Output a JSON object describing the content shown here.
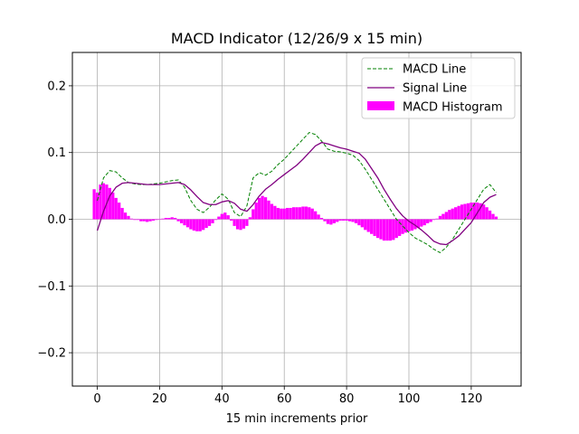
{
  "chart_data": {
    "type": "line",
    "title": "MACD Indicator (12/26/9 x 15 min)",
    "xlabel": "15 min increments prior",
    "ylabel": "",
    "xlim": [
      -8,
      136
    ],
    "ylim": [
      -0.25,
      0.25
    ],
    "xticks": [
      0,
      20,
      40,
      60,
      80,
      100,
      120
    ],
    "xtick_labels": [
      "0",
      "20",
      "40",
      "60",
      "80",
      "100",
      "120"
    ],
    "yticks": [
      -0.2,
      -0.1,
      0.0,
      0.1,
      0.2
    ],
    "ytick_labels": [
      "−0.2",
      "−0.1",
      "0.0",
      "0.1",
      "0.2"
    ],
    "grid": true,
    "legend_position": "top-right",
    "colors": {
      "macd": "#008000",
      "signal": "#800080",
      "histogram": "#ff00ff"
    },
    "series": [
      {
        "name": "MACD Line",
        "style": "dashed",
        "x": [
          0,
          2,
          4,
          6,
          8,
          10,
          12,
          14,
          16,
          18,
          20,
          22,
          24,
          26,
          28,
          30,
          32,
          34,
          36,
          38,
          40,
          42,
          44,
          46,
          48,
          50,
          52,
          54,
          56,
          58,
          60,
          62,
          64,
          66,
          68,
          70,
          72,
          74,
          76,
          78,
          80,
          82,
          84,
          86,
          88,
          90,
          92,
          94,
          96,
          98,
          100,
          102,
          104,
          106,
          108,
          110,
          112,
          114,
          116,
          118,
          120,
          122,
          124,
          126,
          128
        ],
        "values": [
          0.028,
          0.062,
          0.073,
          0.071,
          0.062,
          0.055,
          0.053,
          0.052,
          0.052,
          0.053,
          0.054,
          0.056,
          0.058,
          0.059,
          0.048,
          0.028,
          0.015,
          0.01,
          0.018,
          0.029,
          0.038,
          0.03,
          0.01,
          0.004,
          0.02,
          0.062,
          0.07,
          0.066,
          0.072,
          0.082,
          0.09,
          0.1,
          0.11,
          0.12,
          0.13,
          0.127,
          0.117,
          0.105,
          0.102,
          0.101,
          0.099,
          0.096,
          0.088,
          0.075,
          0.06,
          0.045,
          0.03,
          0.015,
          0.0,
          -0.01,
          -0.02,
          -0.028,
          -0.033,
          -0.038,
          -0.045,
          -0.05,
          -0.042,
          -0.03,
          -0.015,
          0.0,
          0.015,
          0.03,
          0.045,
          0.052,
          0.04
        ]
      },
      {
        "name": "Signal Line",
        "style": "solid",
        "x": [
          0,
          2,
          4,
          6,
          8,
          10,
          12,
          14,
          16,
          18,
          20,
          22,
          24,
          26,
          28,
          30,
          32,
          34,
          36,
          38,
          40,
          42,
          44,
          46,
          48,
          50,
          52,
          54,
          56,
          58,
          60,
          62,
          64,
          66,
          68,
          70,
          72,
          74,
          76,
          78,
          80,
          82,
          84,
          86,
          88,
          90,
          92,
          94,
          96,
          98,
          100,
          102,
          104,
          106,
          108,
          110,
          112,
          114,
          116,
          118,
          120,
          122,
          124,
          126,
          128
        ],
        "values": [
          -0.017,
          0.012,
          0.035,
          0.048,
          0.054,
          0.055,
          0.054,
          0.053,
          0.052,
          0.052,
          0.052,
          0.053,
          0.054,
          0.055,
          0.052,
          0.044,
          0.034,
          0.025,
          0.022,
          0.022,
          0.026,
          0.028,
          0.024,
          0.015,
          0.012,
          0.022,
          0.035,
          0.045,
          0.052,
          0.06,
          0.067,
          0.074,
          0.081,
          0.09,
          0.1,
          0.11,
          0.115,
          0.113,
          0.11,
          0.107,
          0.105,
          0.102,
          0.099,
          0.09,
          0.076,
          0.062,
          0.045,
          0.03,
          0.016,
          0.005,
          -0.003,
          -0.009,
          -0.016,
          -0.024,
          -0.033,
          -0.037,
          -0.038,
          -0.032,
          -0.025,
          -0.015,
          -0.005,
          0.01,
          0.025,
          0.033,
          0.037
        ]
      },
      {
        "name": "MACD Histogram",
        "style": "bars",
        "x": [
          -1,
          0,
          1,
          2,
          3,
          4,
          5,
          6,
          7,
          8,
          9,
          10,
          11,
          12,
          13,
          14,
          15,
          16,
          17,
          18,
          19,
          20,
          21,
          22,
          23,
          24,
          25,
          26,
          27,
          28,
          29,
          30,
          31,
          32,
          33,
          34,
          35,
          36,
          37,
          38,
          39,
          40,
          41,
          42,
          43,
          44,
          45,
          46,
          47,
          48,
          49,
          50,
          51,
          52,
          53,
          54,
          55,
          56,
          57,
          58,
          59,
          60,
          61,
          62,
          63,
          64,
          65,
          66,
          67,
          68,
          69,
          70,
          71,
          72,
          73,
          74,
          75,
          76,
          77,
          78,
          79,
          80,
          81,
          82,
          83,
          84,
          85,
          86,
          87,
          88,
          89,
          90,
          91,
          92,
          93,
          94,
          95,
          96,
          97,
          98,
          99,
          100,
          101,
          102,
          103,
          104,
          105,
          106,
          107,
          108,
          109,
          110,
          111,
          112,
          113,
          114,
          115,
          116,
          117,
          118,
          119,
          120,
          121,
          122,
          123,
          124,
          125,
          126,
          127,
          128
        ],
        "values": [
          0.045,
          0.04,
          0.052,
          0.054,
          0.052,
          0.047,
          0.04,
          0.032,
          0.025,
          0.017,
          0.01,
          0.005,
          0.001,
          -0.001,
          -0.001,
          -0.003,
          -0.003,
          -0.004,
          -0.003,
          -0.002,
          -0.001,
          0.0,
          0.001,
          0.002,
          0.002,
          0.003,
          0.002,
          -0.003,
          -0.006,
          -0.009,
          -0.012,
          -0.015,
          -0.017,
          -0.018,
          -0.018,
          -0.016,
          -0.013,
          -0.01,
          -0.006,
          -0.001,
          0.004,
          0.008,
          0.01,
          0.006,
          -0.002,
          -0.01,
          -0.015,
          -0.016,
          -0.014,
          -0.01,
          0.003,
          0.015,
          0.025,
          0.032,
          0.035,
          0.033,
          0.028,
          0.023,
          0.02,
          0.017,
          0.016,
          0.016,
          0.017,
          0.017,
          0.018,
          0.018,
          0.018,
          0.019,
          0.019,
          0.018,
          0.016,
          0.012,
          0.007,
          0.002,
          -0.003,
          -0.007,
          -0.008,
          -0.006,
          -0.004,
          -0.002,
          -0.002,
          -0.002,
          -0.003,
          -0.004,
          -0.006,
          -0.009,
          -0.012,
          -0.016,
          -0.019,
          -0.022,
          -0.025,
          -0.028,
          -0.03,
          -0.032,
          -0.032,
          -0.032,
          -0.031,
          -0.028,
          -0.025,
          -0.022,
          -0.02,
          -0.018,
          -0.017,
          -0.015,
          -0.013,
          -0.011,
          -0.009,
          -0.006,
          -0.004,
          -0.001,
          0.001,
          0.005,
          0.008,
          0.011,
          0.014,
          0.016,
          0.018,
          0.02,
          0.022,
          0.023,
          0.024,
          0.025,
          0.025,
          0.025,
          0.024,
          0.022,
          0.018,
          0.013,
          0.008,
          0.004
        ]
      }
    ]
  }
}
